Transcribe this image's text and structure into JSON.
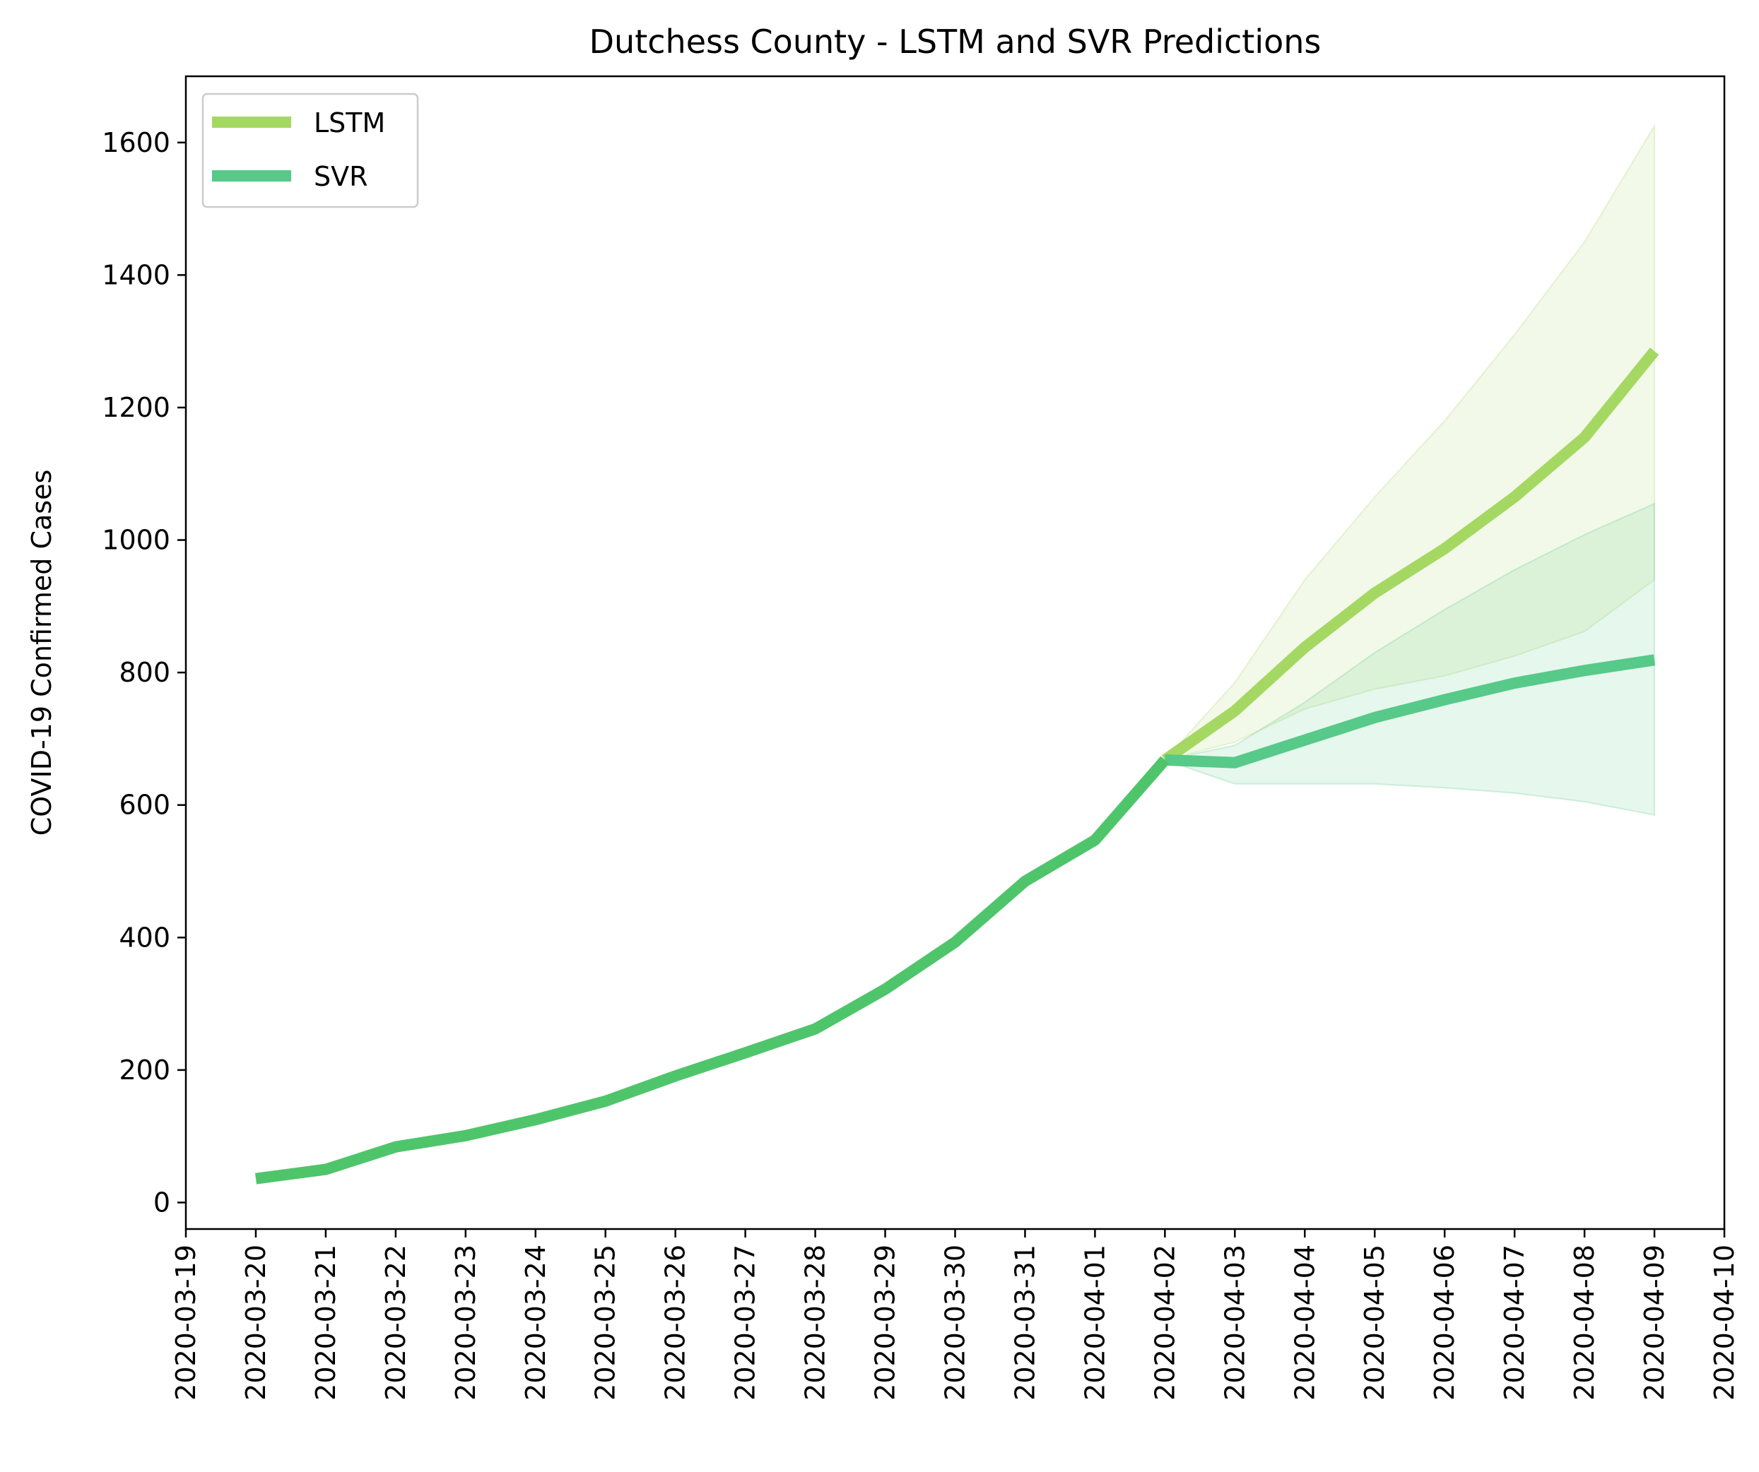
{
  "chart_data": {
    "type": "line",
    "title": "Dutchess County - LSTM and SVR Predictions",
    "xlabel": "",
    "ylabel": "COVID-19 Confirmed Cases",
    "x_ticks": [
      "2020-03-19",
      "2020-03-20",
      "2020-03-21",
      "2020-03-22",
      "2020-03-23",
      "2020-03-24",
      "2020-03-25",
      "2020-03-26",
      "2020-03-27",
      "2020-03-28",
      "2020-03-29",
      "2020-03-30",
      "2020-03-31",
      "2020-04-01",
      "2020-04-02",
      "2020-04-03",
      "2020-04-04",
      "2020-04-05",
      "2020-04-06",
      "2020-04-07",
      "2020-04-08",
      "2020-04-09",
      "2020-04-10"
    ],
    "y_ticks": [
      0,
      200,
      400,
      600,
      800,
      1000,
      1200,
      1400,
      1600
    ],
    "xlim": [
      "2020-03-19",
      "2020-04-10"
    ],
    "ylim": [
      -40,
      1700
    ],
    "grid": false,
    "legend": "top-left",
    "observed": {
      "x": [
        "2020-03-20",
        "2020-03-21",
        "2020-03-22",
        "2020-03-23",
        "2020-03-24",
        "2020-03-25",
        "2020-03-26",
        "2020-03-27",
        "2020-03-28",
        "2020-03-29",
        "2020-03-30",
        "2020-03-31",
        "2020-04-01",
        "2020-04-02"
      ],
      "values": [
        36,
        50,
        84,
        101,
        125,
        153,
        191,
        226,
        262,
        322,
        393,
        485,
        547,
        668
      ],
      "color": "#4fc56b"
    },
    "series": [
      {
        "name": "LSTM",
        "color": "#a5d862",
        "band_color": "#a5d862",
        "x": [
          "2020-04-02",
          "2020-04-03",
          "2020-04-04",
          "2020-04-05",
          "2020-04-06",
          "2020-04-07",
          "2020-04-08",
          "2020-04-09"
        ],
        "values": [
          668,
          742,
          838,
          920,
          987,
          1065,
          1155,
          1285
        ],
        "lower": [
          668,
          695,
          745,
          775,
          795,
          825,
          862,
          940
        ],
        "upper": [
          668,
          785,
          940,
          1065,
          1180,
          1310,
          1450,
          1625
        ]
      },
      {
        "name": "SVR",
        "color": "#57c989",
        "band_color": "#57c989",
        "x": [
          "2020-04-02",
          "2020-04-03",
          "2020-04-04",
          "2020-04-05",
          "2020-04-06",
          "2020-04-07",
          "2020-04-08",
          "2020-04-09"
        ],
        "values": [
          668,
          664,
          698,
          732,
          759,
          784,
          803,
          819
        ],
        "lower": [
          668,
          632,
          632,
          632,
          626,
          618,
          605,
          585
        ],
        "upper": [
          668,
          690,
          755,
          830,
          895,
          955,
          1008,
          1055
        ]
      }
    ]
  }
}
